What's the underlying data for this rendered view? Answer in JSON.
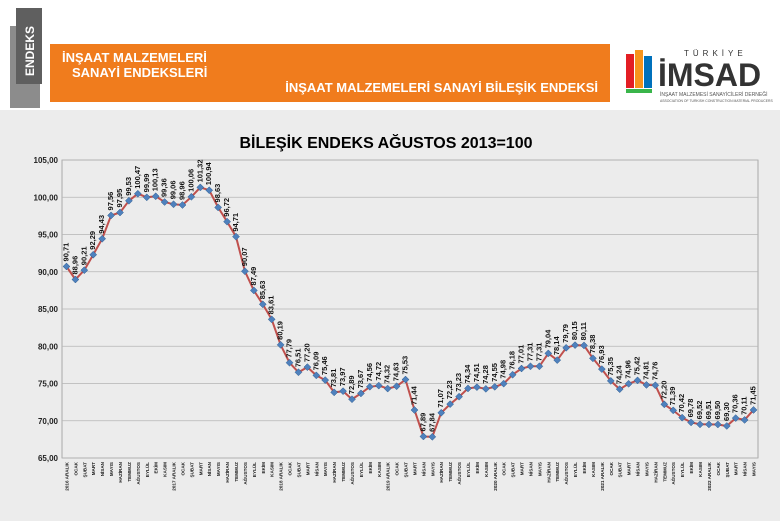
{
  "header": {
    "badge": "ENDEKS",
    "title_line1": "İNŞAAT MALZEMELERİ",
    "title_line2": "SANAYİ ENDEKSLERİ",
    "right_title": "İNŞAAT MALZEMELERİ SANAYİ BİLEŞİK ENDEKSİ",
    "brand_top": "TÜRKİYE",
    "brand_main": "İMSAD",
    "brand_sub1": "İNŞAAT MALZEMESİ SANAYİCİLERİ DERNEĞİ",
    "brand_sub2": "ASSOCIATION OF TURKISH CONSTRUCTION MATERIAL PRODUCERS",
    "colors": {
      "orange": "#f07c1d",
      "line": "#c0504d",
      "marker": "#4f81bd"
    }
  },
  "chart_data": {
    "type": "line",
    "title": "BİLEŞİK ENDEKS AĞUSTOS 2013=100",
    "ylim": [
      65,
      105
    ],
    "yticks": [
      "65,00",
      "70,00",
      "75,00",
      "80,00",
      "85,00",
      "90,00",
      "95,00",
      "100,00",
      "105,00"
    ],
    "grid": true,
    "categories": [
      "2016 ARALIK",
      "OCAK",
      "ŞUBAT",
      "MART",
      "NİSAN",
      "MAYIS",
      "HAZİRAN",
      "TEMMUZ",
      "AĞUSTOS",
      "EYLÜL",
      "EKİM",
      "KASIM",
      "2017 ARALIK",
      "OCAK",
      "ŞUBAT",
      "MART",
      "NİSAN",
      "MAYIS",
      "HAZİRAN",
      "TEMMUZ",
      "AĞUSTOS",
      "EYLÜL",
      "EKİM",
      "KASIM",
      "2018 ARALIK",
      "OCAK",
      "ŞUBAT",
      "MART",
      "NİSAN",
      "MAYIS",
      "HAZİRAN",
      "TEMMUZ",
      "AĞUSTOS",
      "EYLÜL",
      "EKİM",
      "KASIM",
      "2019 ARALIK",
      "OCAK",
      "ŞUBAT",
      "MART",
      "NİSAN",
      "MAYIS",
      "HAZİRAN",
      "TEMMUZ",
      "AĞUSTOS",
      "EYLÜL",
      "EKİM",
      "KASIM",
      "2020 ARALIK",
      "OCAK",
      "ŞUBAT",
      "MART",
      "NİSAN",
      "MAYIS",
      "HAZİRAN",
      "TEMMUZ",
      "AĞUSTOS",
      "EYLÜL",
      "EKİM",
      "KASIM",
      "2021 ARALIK",
      "OCAK",
      "ŞUBAT",
      "MART",
      "NİSAN",
      "MAYIS",
      "HAZİRAN",
      "TEMMUZ",
      "AĞUSTOS",
      "EYLÜL",
      "EKİM",
      "KASIM",
      "2022 ARALIK",
      "OCAK",
      "ŞUBAT",
      "MART",
      "NİSAN",
      "MAYIS"
    ],
    "values": [
      90.71,
      88.96,
      90.21,
      92.29,
      94.43,
      97.56,
      97.95,
      99.53,
      100.47,
      99.99,
      100.13,
      99.36,
      99.06,
      98.96,
      100.06,
      101.32,
      100.94,
      98.63,
      96.72,
      94.71,
      90.07,
      87.49,
      85.63,
      83.61,
      80.19,
      77.79,
      76.51,
      77.2,
      76.09,
      75.46,
      73.81,
      73.97,
      72.89,
      73.67,
      74.56,
      74.72,
      74.32,
      74.63,
      75.53,
      71.44,
      67.89,
      67.84,
      71.07,
      72.23,
      73.23,
      74.34,
      74.51,
      74.28,
      74.55,
      74.98,
      76.18,
      77.01,
      77.31,
      77.31,
      79.04,
      78.14,
      79.79,
      80.15,
      80.11,
      78.38,
      76.93,
      75.35,
      74.24,
      74.96,
      75.42,
      74.81,
      74.76,
      72.2,
      71.39,
      70.42,
      69.78,
      69.52,
      69.51,
      69.5,
      69.3,
      70.36,
      70.11,
      71.45
    ],
    "labels": [
      "90,71",
      "88,96",
      "90,21",
      "92,29",
      "94,43",
      "97,56",
      "97,95",
      "99,53",
      "100,47",
      "99,99",
      "100,13",
      "99,36",
      "99,06",
      "98,96",
      "100,06",
      "101,32",
      "100,94",
      "98,63",
      "96,72",
      "94,71",
      "90,07",
      "87,49",
      "85,63",
      "83,61",
      "80,19",
      "77,79",
      "76,51",
      "77,20",
      "76,09",
      "75,46",
      "73,81",
      "73,97",
      "72,89",
      "73,67",
      "74,56",
      "74,72",
      "74,32",
      "74,63",
      "75,53",
      "71,44",
      "67,89",
      "67,84",
      "71,07",
      "72,23",
      "73,23",
      "74,34",
      "74,51",
      "74,28",
      "74,55",
      "74,98",
      "76,18",
      "77,01",
      "77,31",
      "77,31",
      "79,04",
      "78,14",
      "79,79",
      "80,15",
      "80,11",
      "78,38",
      "76,93",
      "75,35",
      "74,24",
      "74,96",
      "75,42",
      "74,81",
      "74,76",
      "72,20",
      "71,39",
      "70,42",
      "69,78",
      "69,52",
      "69,51",
      "69,50",
      "69,30",
      "70,36",
      "70,11",
      "71,45"
    ]
  }
}
